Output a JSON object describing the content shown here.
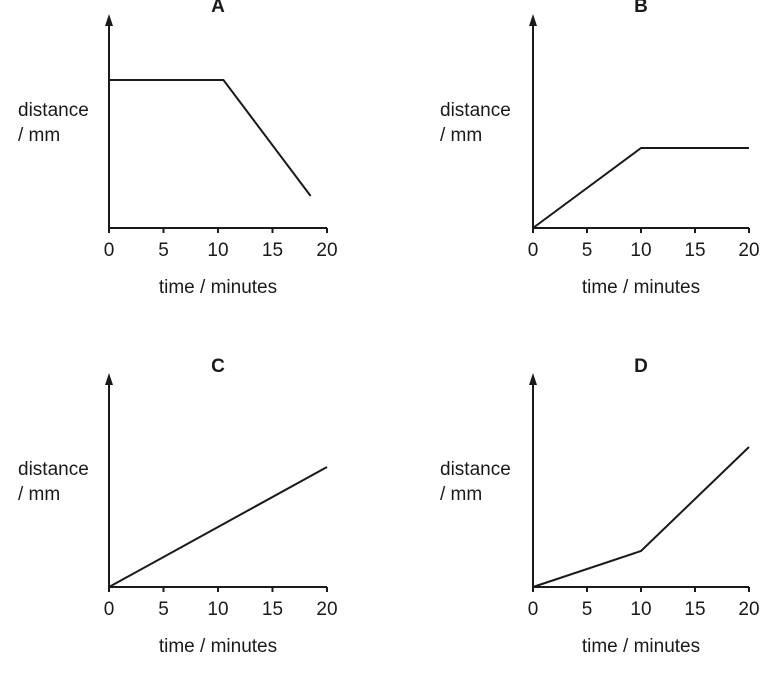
{
  "chart_data": [
    {
      "type": "line",
      "title": "A",
      "ylabel": [
        "distance",
        "/ mm"
      ],
      "xlabel": "time / minutes",
      "xticks": [
        0,
        5,
        10,
        15,
        20
      ],
      "xlim": [
        0,
        20
      ],
      "series": [
        {
          "x": [
            0,
            10.5,
            18.5
          ],
          "y": [
            0.74,
            0.74,
            0.16
          ]
        }
      ]
    },
    {
      "type": "line",
      "title": "B",
      "ylabel": [
        "distance",
        "/ mm"
      ],
      "xlabel": "time / minutes",
      "xticks": [
        0,
        5,
        10,
        15,
        20
      ],
      "xlim": [
        0,
        20
      ],
      "series": [
        {
          "x": [
            0,
            10,
            20
          ],
          "y": [
            0,
            0.4,
            0.4
          ]
        }
      ]
    },
    {
      "type": "line",
      "title": "C",
      "ylabel": [
        "distance",
        "/ mm"
      ],
      "xlabel": "time / minutes",
      "xticks": [
        0,
        5,
        10,
        15,
        20
      ],
      "xlim": [
        0,
        20
      ],
      "series": [
        {
          "x": [
            0,
            20
          ],
          "y": [
            0,
            0.6
          ]
        }
      ]
    },
    {
      "type": "line",
      "title": "D",
      "ylabel": [
        "distance",
        "/ mm"
      ],
      "xlabel": "time / minutes",
      "xticks": [
        0,
        5,
        10,
        15,
        20
      ],
      "xlim": [
        0,
        20
      ],
      "series": [
        {
          "x": [
            0,
            10,
            20
          ],
          "y": [
            0,
            0.18,
            0.7
          ]
        }
      ]
    }
  ]
}
